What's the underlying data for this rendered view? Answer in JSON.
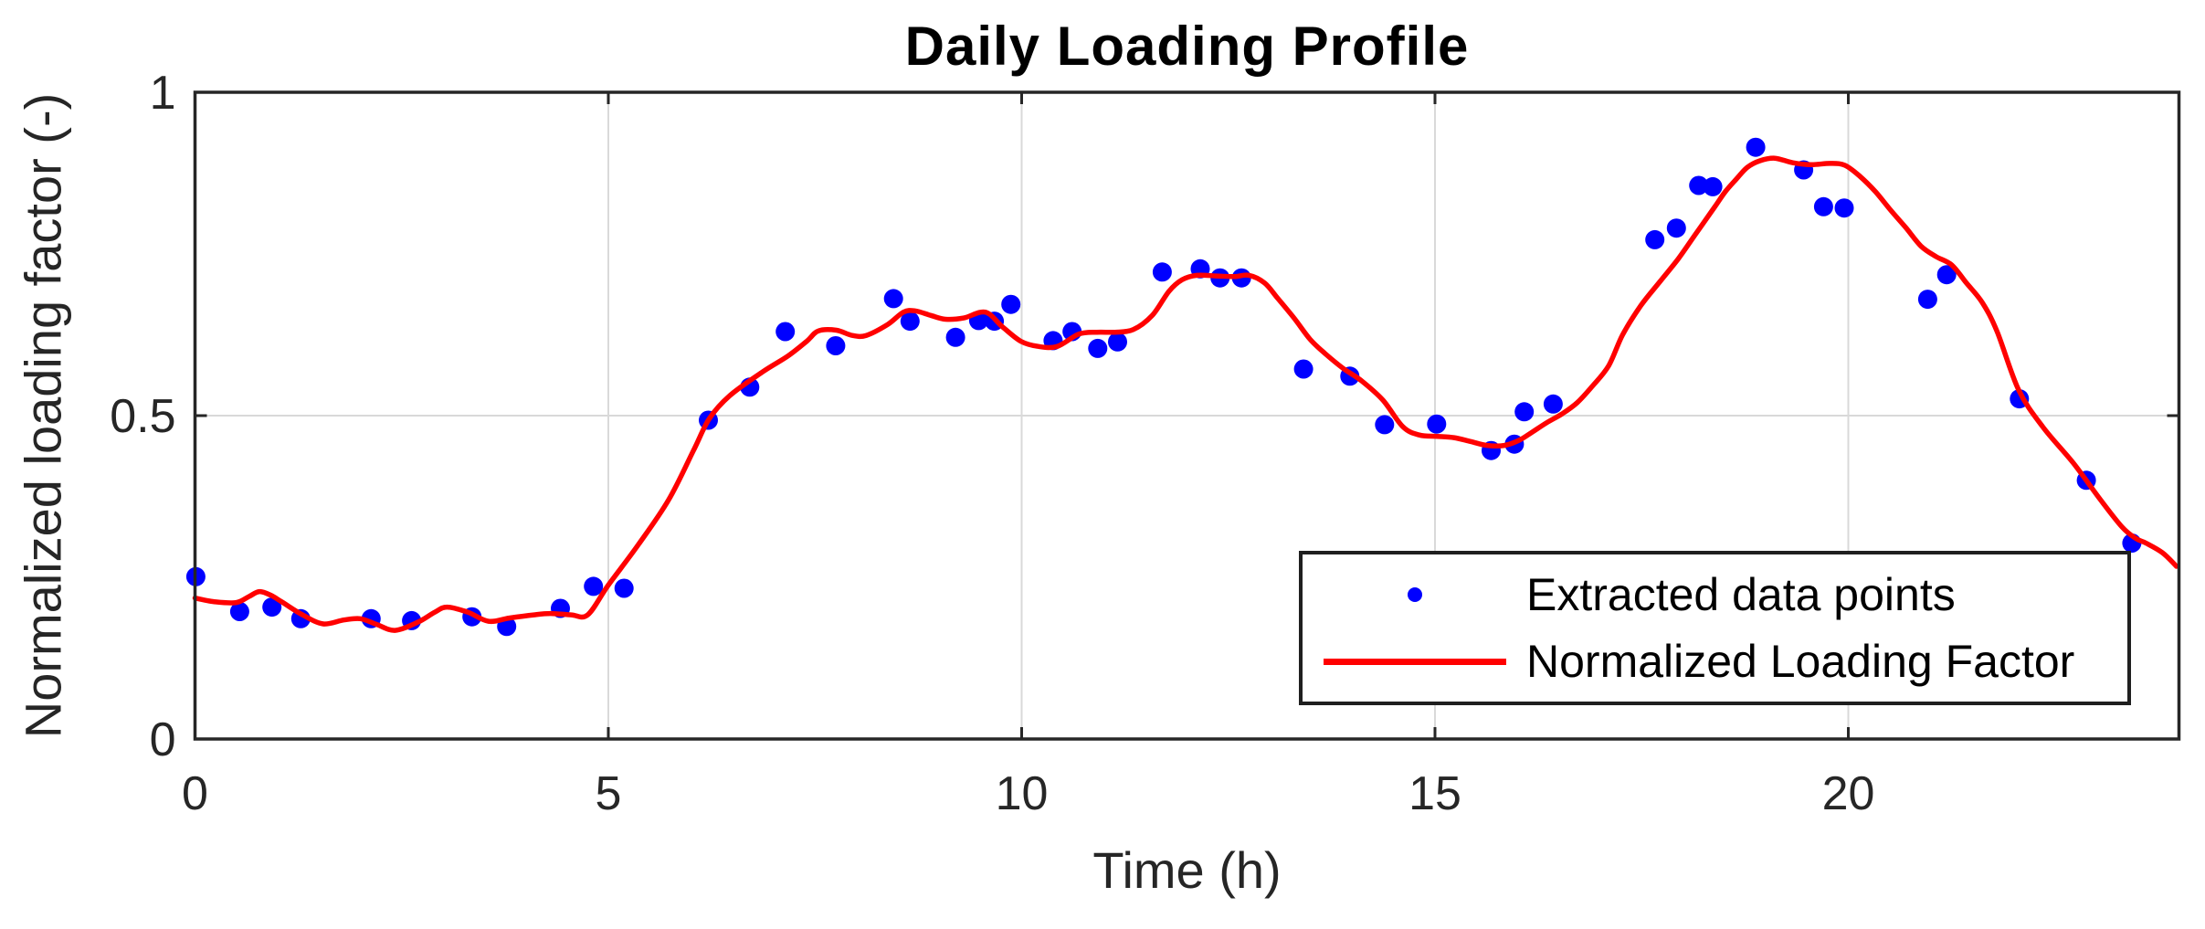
{
  "title": "Daily Loading Profile",
  "axes": {
    "x": {
      "label": "Time (h)",
      "range": [
        0,
        24
      ],
      "ticks": [
        0,
        5,
        10,
        15,
        20
      ],
      "tick_labels": [
        "0",
        "5",
        "10",
        "15",
        "20"
      ]
    },
    "y": {
      "label": "Normalized loading factor (-)",
      "range": [
        0,
        1
      ],
      "ticks": [
        0,
        0.5,
        1
      ],
      "tick_labels": [
        "0",
        "0.5",
        "1"
      ]
    }
  },
  "legend": {
    "position": "south-east",
    "items": [
      {
        "label": "Extracted data points",
        "marker": "dot",
        "color": "#0000ff"
      },
      {
        "label": "Normalized Loading Factor",
        "marker": "line",
        "color": "#ff0000"
      }
    ]
  },
  "colors": {
    "scatter": "#0000ff",
    "line": "#ff0000",
    "grid": "#d9d9d9",
    "axis": "#262626",
    "tick_text": "#262626",
    "title_text": "#000000",
    "background": "#ffffff"
  },
  "chart_data": {
    "type": "scatter",
    "title": "Daily Loading Profile",
    "xlabel": "Time (h)",
    "ylabel": "Normalized loading factor (-)",
    "xlim": [
      0,
      24
    ],
    "ylim": [
      0,
      1
    ],
    "grid": true,
    "legend_position": "bottom-right",
    "series": [
      {
        "name": "Extracted data points",
        "type": "scatter",
        "color": "#0000ff",
        "points": [
          [
            0.01,
            0.251
          ],
          [
            0.54,
            0.197
          ],
          [
            0.93,
            0.204
          ],
          [
            1.28,
            0.186
          ],
          [
            2.13,
            0.186
          ],
          [
            2.62,
            0.183
          ],
          [
            3.35,
            0.189
          ],
          [
            3.77,
            0.174
          ],
          [
            4.42,
            0.202
          ],
          [
            4.82,
            0.236
          ],
          [
            5.19,
            0.233
          ],
          [
            6.21,
            0.493
          ],
          [
            6.71,
            0.544
          ],
          [
            7.14,
            0.63
          ],
          [
            7.75,
            0.608
          ],
          [
            8.45,
            0.681
          ],
          [
            8.65,
            0.646
          ],
          [
            9.2,
            0.621
          ],
          [
            9.48,
            0.647
          ],
          [
            9.67,
            0.646
          ],
          [
            9.87,
            0.672
          ],
          [
            10.38,
            0.616
          ],
          [
            10.61,
            0.63
          ],
          [
            10.92,
            0.604
          ],
          [
            11.16,
            0.614
          ],
          [
            11.7,
            0.722
          ],
          [
            12.16,
            0.727
          ],
          [
            12.4,
            0.713
          ],
          [
            12.66,
            0.713
          ],
          [
            13.41,
            0.572
          ],
          [
            13.97,
            0.561
          ],
          [
            14.39,
            0.486
          ],
          [
            15.02,
            0.487
          ],
          [
            15.68,
            0.446
          ],
          [
            15.96,
            0.456
          ],
          [
            16.08,
            0.506
          ],
          [
            16.43,
            0.518
          ],
          [
            17.66,
            0.772
          ],
          [
            17.92,
            0.79
          ],
          [
            18.19,
            0.856
          ],
          [
            18.36,
            0.854
          ],
          [
            18.88,
            0.915
          ],
          [
            19.46,
            0.88
          ],
          [
            19.7,
            0.823
          ],
          [
            19.95,
            0.821
          ],
          [
            20.96,
            0.68
          ],
          [
            21.19,
            0.718
          ],
          [
            22.07,
            0.526
          ],
          [
            22.88,
            0.4
          ],
          [
            23.43,
            0.303
          ]
        ]
      },
      {
        "name": "Normalized Loading Factor",
        "type": "line",
        "color": "#ff0000",
        "points": [
          [
            0.0,
            0.218
          ],
          [
            0.25,
            0.212
          ],
          [
            0.5,
            0.211
          ],
          [
            0.65,
            0.22
          ],
          [
            0.78,
            0.228
          ],
          [
            0.92,
            0.222
          ],
          [
            1.05,
            0.212
          ],
          [
            1.3,
            0.192
          ],
          [
            1.55,
            0.178
          ],
          [
            1.8,
            0.184
          ],
          [
            2.0,
            0.186
          ],
          [
            2.2,
            0.177
          ],
          [
            2.42,
            0.168
          ],
          [
            2.7,
            0.181
          ],
          [
            2.9,
            0.196
          ],
          [
            3.05,
            0.204
          ],
          [
            3.3,
            0.196
          ],
          [
            3.55,
            0.182
          ],
          [
            3.8,
            0.187
          ],
          [
            4.1,
            0.192
          ],
          [
            4.3,
            0.194
          ],
          [
            4.55,
            0.192
          ],
          [
            4.75,
            0.192
          ],
          [
            5.0,
            0.238
          ],
          [
            5.36,
            0.3
          ],
          [
            5.73,
            0.37
          ],
          [
            6.03,
            0.446
          ],
          [
            6.22,
            0.495
          ],
          [
            6.47,
            0.531
          ],
          [
            6.87,
            0.568
          ],
          [
            7.17,
            0.592
          ],
          [
            7.4,
            0.615
          ],
          [
            7.54,
            0.631
          ],
          [
            7.76,
            0.632
          ],
          [
            7.95,
            0.624
          ],
          [
            8.12,
            0.624
          ],
          [
            8.38,
            0.641
          ],
          [
            8.57,
            0.66
          ],
          [
            8.71,
            0.662
          ],
          [
            8.9,
            0.655
          ],
          [
            9.08,
            0.649
          ],
          [
            9.3,
            0.651
          ],
          [
            9.56,
            0.66
          ],
          [
            9.77,
            0.637
          ],
          [
            9.99,
            0.615
          ],
          [
            10.2,
            0.607
          ],
          [
            10.43,
            0.607
          ],
          [
            10.69,
            0.626
          ],
          [
            10.91,
            0.629
          ],
          [
            11.13,
            0.629
          ],
          [
            11.35,
            0.633
          ],
          [
            11.58,
            0.655
          ],
          [
            11.78,
            0.692
          ],
          [
            11.94,
            0.71
          ],
          [
            12.12,
            0.717
          ],
          [
            12.35,
            0.716
          ],
          [
            12.57,
            0.715
          ],
          [
            12.75,
            0.717
          ],
          [
            12.94,
            0.705
          ],
          [
            13.1,
            0.681
          ],
          [
            13.3,
            0.65
          ],
          [
            13.49,
            0.618
          ],
          [
            13.67,
            0.596
          ],
          [
            13.89,
            0.573
          ],
          [
            14.11,
            0.554
          ],
          [
            14.37,
            0.524
          ],
          [
            14.61,
            0.483
          ],
          [
            14.81,
            0.47
          ],
          [
            15.03,
            0.468
          ],
          [
            15.23,
            0.466
          ],
          [
            15.43,
            0.46
          ],
          [
            15.63,
            0.454
          ],
          [
            15.84,
            0.454
          ],
          [
            16.02,
            0.462
          ],
          [
            16.17,
            0.474
          ],
          [
            16.35,
            0.489
          ],
          [
            16.54,
            0.503
          ],
          [
            16.72,
            0.52
          ],
          [
            16.9,
            0.545
          ],
          [
            17.1,
            0.577
          ],
          [
            17.27,
            0.625
          ],
          [
            17.49,
            0.67
          ],
          [
            17.72,
            0.707
          ],
          [
            17.94,
            0.742
          ],
          [
            18.16,
            0.782
          ],
          [
            18.38,
            0.822
          ],
          [
            18.51,
            0.846
          ],
          [
            18.64,
            0.865
          ],
          [
            18.78,
            0.884
          ],
          [
            18.93,
            0.894
          ],
          [
            19.11,
            0.898
          ],
          [
            19.33,
            0.891
          ],
          [
            19.55,
            0.888
          ],
          [
            19.78,
            0.89
          ],
          [
            19.96,
            0.887
          ],
          [
            20.14,
            0.87
          ],
          [
            20.33,
            0.846
          ],
          [
            20.51,
            0.818
          ],
          [
            20.7,
            0.79
          ],
          [
            20.88,
            0.762
          ],
          [
            21.06,
            0.746
          ],
          [
            21.25,
            0.733
          ],
          [
            21.43,
            0.705
          ],
          [
            21.62,
            0.675
          ],
          [
            21.8,
            0.63
          ],
          [
            22.06,
            0.54
          ],
          [
            22.35,
            0.483
          ],
          [
            22.72,
            0.427
          ],
          [
            23.05,
            0.37
          ],
          [
            23.31,
            0.328
          ],
          [
            23.48,
            0.31
          ],
          [
            23.6,
            0.303
          ],
          [
            23.8,
            0.288
          ],
          [
            23.97,
            0.267
          ]
        ]
      }
    ]
  }
}
